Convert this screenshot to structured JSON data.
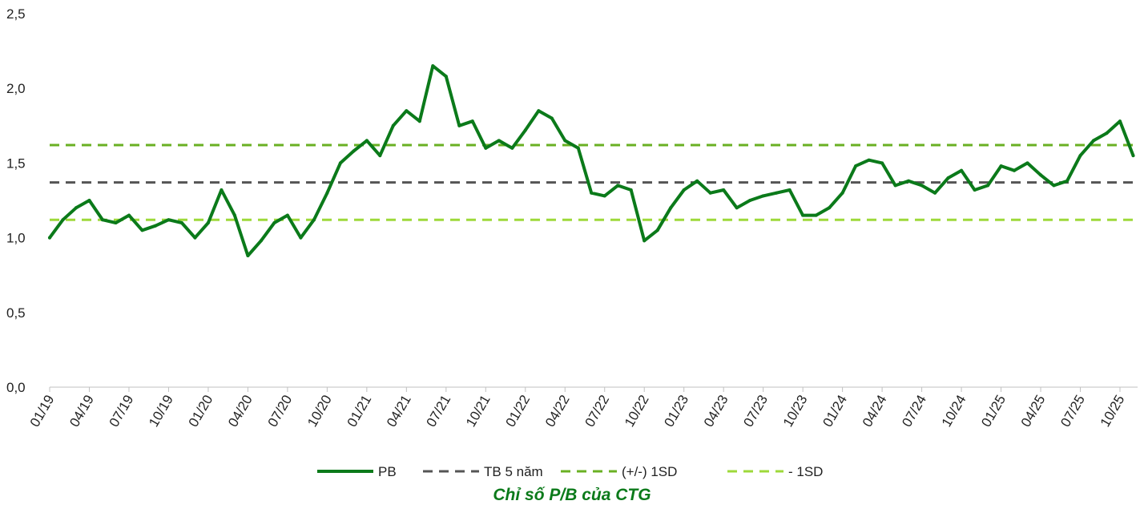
{
  "title": "Chỉ số P/B của CTG",
  "chart_data": {
    "type": "line",
    "title": "Chỉ số P/B của CTG",
    "xlabel": "",
    "ylabel": "",
    "ylim": [
      0.0,
      2.5
    ],
    "y_ticks": [
      "0,0",
      "0,5",
      "1,0",
      "1,5",
      "2,0",
      "2,5"
    ],
    "y_tick_values": [
      0.0,
      0.5,
      1.0,
      1.5,
      2.0,
      2.5
    ],
    "x_ticks": [
      "01/19",
      "04/19",
      "07/19",
      "10/19",
      "01/20",
      "04/20",
      "07/20",
      "10/20",
      "01/21",
      "04/21",
      "07/21",
      "10/21",
      "01/22",
      "04/22",
      "07/22",
      "10/22",
      "01/23",
      "04/23",
      "07/23",
      "10/23",
      "01/24",
      "04/24",
      "07/24",
      "10/24",
      "01/25",
      "04/25",
      "07/25",
      "10/25"
    ],
    "grid": false,
    "legend_position": "bottom",
    "series": [
      {
        "name": "PB",
        "color": "#0b7a1a",
        "style": "solid",
        "x": [
          "01/19",
          "02/19",
          "03/19",
          "04/19",
          "05/19",
          "06/19",
          "07/19",
          "08/19",
          "09/19",
          "10/19",
          "11/19",
          "12/19",
          "01/20",
          "02/20",
          "03/20",
          "04/20",
          "05/20",
          "06/20",
          "07/20",
          "08/20",
          "09/20",
          "10/20",
          "11/20",
          "12/20",
          "01/21",
          "02/21",
          "03/21",
          "04/21",
          "05/21",
          "06/21",
          "07/21",
          "08/21",
          "09/21",
          "10/21",
          "11/21",
          "12/21",
          "01/22",
          "02/22",
          "03/22",
          "04/22",
          "05/22",
          "06/22",
          "07/22",
          "08/22",
          "09/22",
          "10/22",
          "11/22",
          "12/22",
          "01/23",
          "02/23",
          "03/23",
          "04/23",
          "05/23",
          "06/23",
          "07/23",
          "08/23",
          "09/23",
          "10/23",
          "11/23",
          "12/23",
          "01/24",
          "02/24",
          "03/24",
          "04/24",
          "05/24",
          "06/24",
          "07/24",
          "08/24",
          "09/24",
          "10/24",
          "11/24",
          "12/24",
          "01/25",
          "02/25",
          "03/25",
          "04/25",
          "05/25",
          "06/25",
          "07/25",
          "08/25",
          "09/25",
          "10/25",
          "11/25"
        ],
        "values": [
          1.0,
          1.12,
          1.2,
          1.25,
          1.12,
          1.1,
          1.15,
          1.05,
          1.08,
          1.12,
          1.1,
          1.0,
          1.1,
          1.32,
          1.15,
          0.88,
          0.98,
          1.1,
          1.15,
          1.0,
          1.12,
          1.3,
          1.5,
          1.58,
          1.65,
          1.55,
          1.75,
          1.85,
          1.78,
          2.15,
          2.08,
          1.75,
          1.78,
          1.6,
          1.65,
          1.6,
          1.72,
          1.85,
          1.8,
          1.65,
          1.6,
          1.3,
          1.28,
          1.35,
          1.32,
          0.98,
          1.05,
          1.2,
          1.32,
          1.38,
          1.3,
          1.32,
          1.2,
          1.25,
          1.28,
          1.3,
          1.32,
          1.15,
          1.15,
          1.2,
          1.3,
          1.48,
          1.52,
          1.5,
          1.35,
          1.38,
          1.35,
          1.3,
          1.4,
          1.45,
          1.32,
          1.35,
          1.48,
          1.45,
          1.5,
          1.42,
          1.35,
          1.38,
          1.55,
          1.65,
          1.7,
          1.78,
          1.55
        ]
      },
      {
        "name": "TB 5 năm",
        "color": "#555555",
        "style": "dashed",
        "value": 1.37
      },
      {
        "name": "(+/-) 1SD",
        "color": "#6ab023",
        "style": "dashed",
        "value": 1.62
      },
      {
        "name": "- 1SD",
        "color": "#9ed93a",
        "style": "dashed",
        "value": 1.12
      }
    ]
  },
  "colors": {
    "caption": "#0b7a1a",
    "axis": "#c0c0c0",
    "text": "#222222"
  }
}
